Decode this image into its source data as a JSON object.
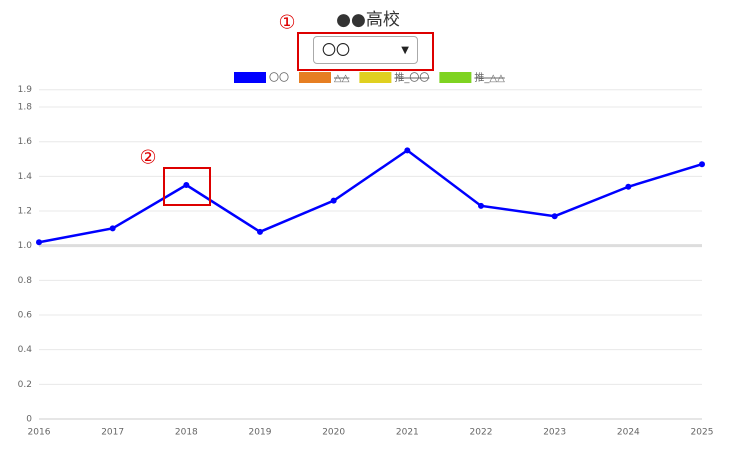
{
  "page_title": "●●高校",
  "selector": {
    "selected": "〇〇"
  },
  "annotations": [
    "①",
    "②"
  ],
  "chart_data": {
    "type": "line",
    "categories": [
      "2016",
      "2017",
      "2018",
      "2019",
      "2020",
      "2021",
      "2022",
      "2023",
      "2024",
      "2025"
    ],
    "series": [
      {
        "name": "〇〇",
        "color": "#0000ff",
        "values": [
          1.02,
          1.1,
          1.35,
          1.08,
          1.26,
          1.55,
          1.23,
          1.17,
          1.34,
          1.47
        ]
      },
      {
        "name": "△△",
        "color": "#e67e22",
        "hidden": true
      },
      {
        "name": "推_〇〇",
        "color": "#e0d020",
        "hidden": true
      },
      {
        "name": "推_△△",
        "color": "#7ed321",
        "hidden": true
      }
    ],
    "ylim": [
      0,
      1.9
    ],
    "yticks": [
      0,
      0.2,
      0.4,
      0.6,
      0.8,
      {
        "value": 1,
        "label": "1.0"
      },
      1.2,
      1.4,
      1.6,
      1.8,
      1.9
    ],
    "reference_line": 1,
    "grid": true
  }
}
